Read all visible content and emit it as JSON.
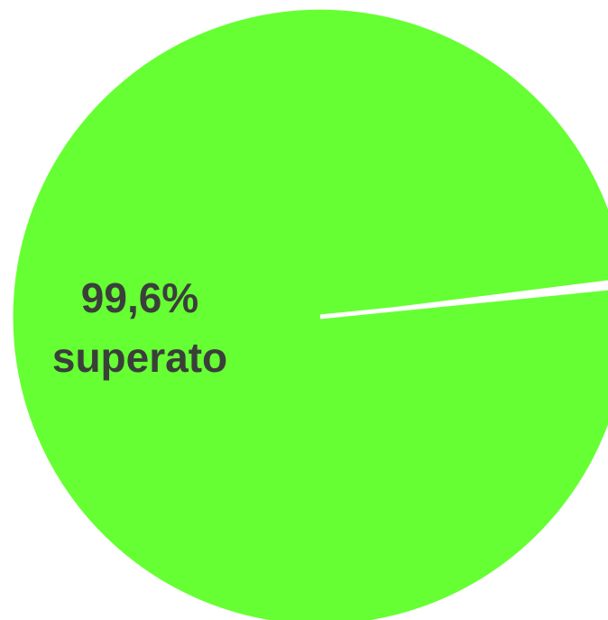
{
  "chart_data": {
    "type": "pie",
    "title": "",
    "slices": [
      {
        "value": 99.6,
        "label_value": "99,6%",
        "label_text": "superato",
        "color": "#66ff33"
      },
      {
        "value": 0.4,
        "label_value": "",
        "label_text": "",
        "color": "#ffffff"
      }
    ],
    "start_angle_deg": -5.7,
    "direction": "clockwise",
    "background": "#ffffff"
  }
}
